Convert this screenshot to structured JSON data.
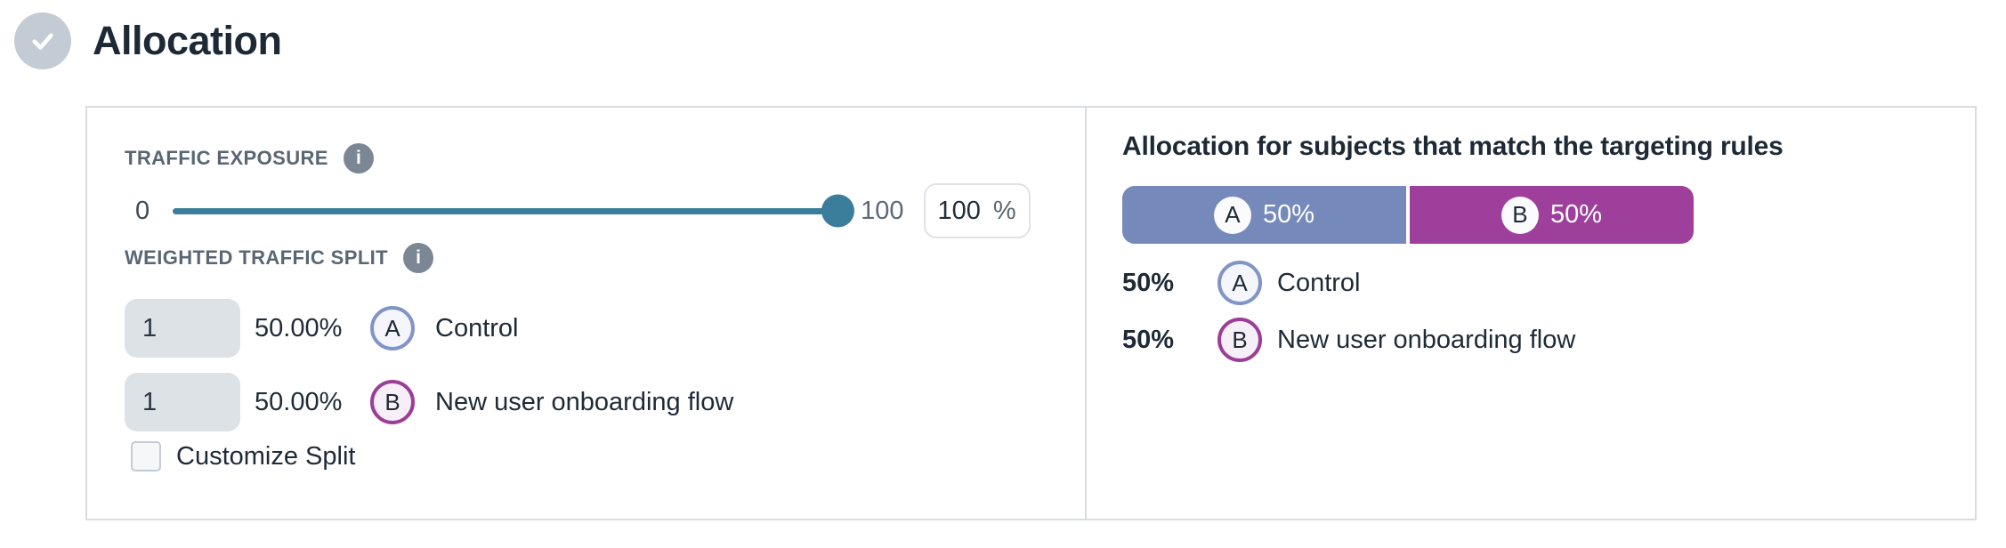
{
  "header": {
    "title": "Allocation",
    "status_icon": "check"
  },
  "left": {
    "traffic_exposure_label": "TRAFFIC EXPOSURE",
    "slider": {
      "min_label": "0",
      "max_label": "100",
      "value_pct": 100,
      "input_value": "100",
      "input_unit": "%"
    },
    "weighted_split_label": "WEIGHTED TRAFFIC SPLIT",
    "groups": [
      {
        "weight": "1",
        "percent": "50.00%",
        "letter": "A",
        "name": "Control"
      },
      {
        "weight": "1",
        "percent": "50.00%",
        "letter": "B",
        "name": "New user onboarding flow"
      }
    ],
    "customize_split": {
      "label": "Customize Split",
      "checked": false
    }
  },
  "right": {
    "heading": "Allocation for subjects that match the targeting rules",
    "bar": [
      {
        "letter": "A",
        "percent": "50%",
        "width_pct": 50
      },
      {
        "letter": "B",
        "percent": "50%",
        "width_pct": 50
      }
    ],
    "legend": [
      {
        "percent": "50%",
        "letter": "A",
        "name": "Control"
      },
      {
        "percent": "50%",
        "letter": "B",
        "name": "New user onboarding flow"
      }
    ]
  },
  "colors": {
    "group_a_fill": "#7589BA",
    "group_a_border": "#8094C6",
    "group_a_chip_bg": "#F5F6FC",
    "group_b_fill": "#9D3F9B",
    "group_b_border": "#9C3E98",
    "group_b_chip_bg": "#F7EFF7",
    "slider_teal": "#3B7E9C",
    "panel_border": "#D9DDE2",
    "label_gray": "#5A6673",
    "text_dark": "#1F2A37",
    "check_circle_bg": "#C3CCD5",
    "weight_input_bg": "#DDE2E7"
  }
}
